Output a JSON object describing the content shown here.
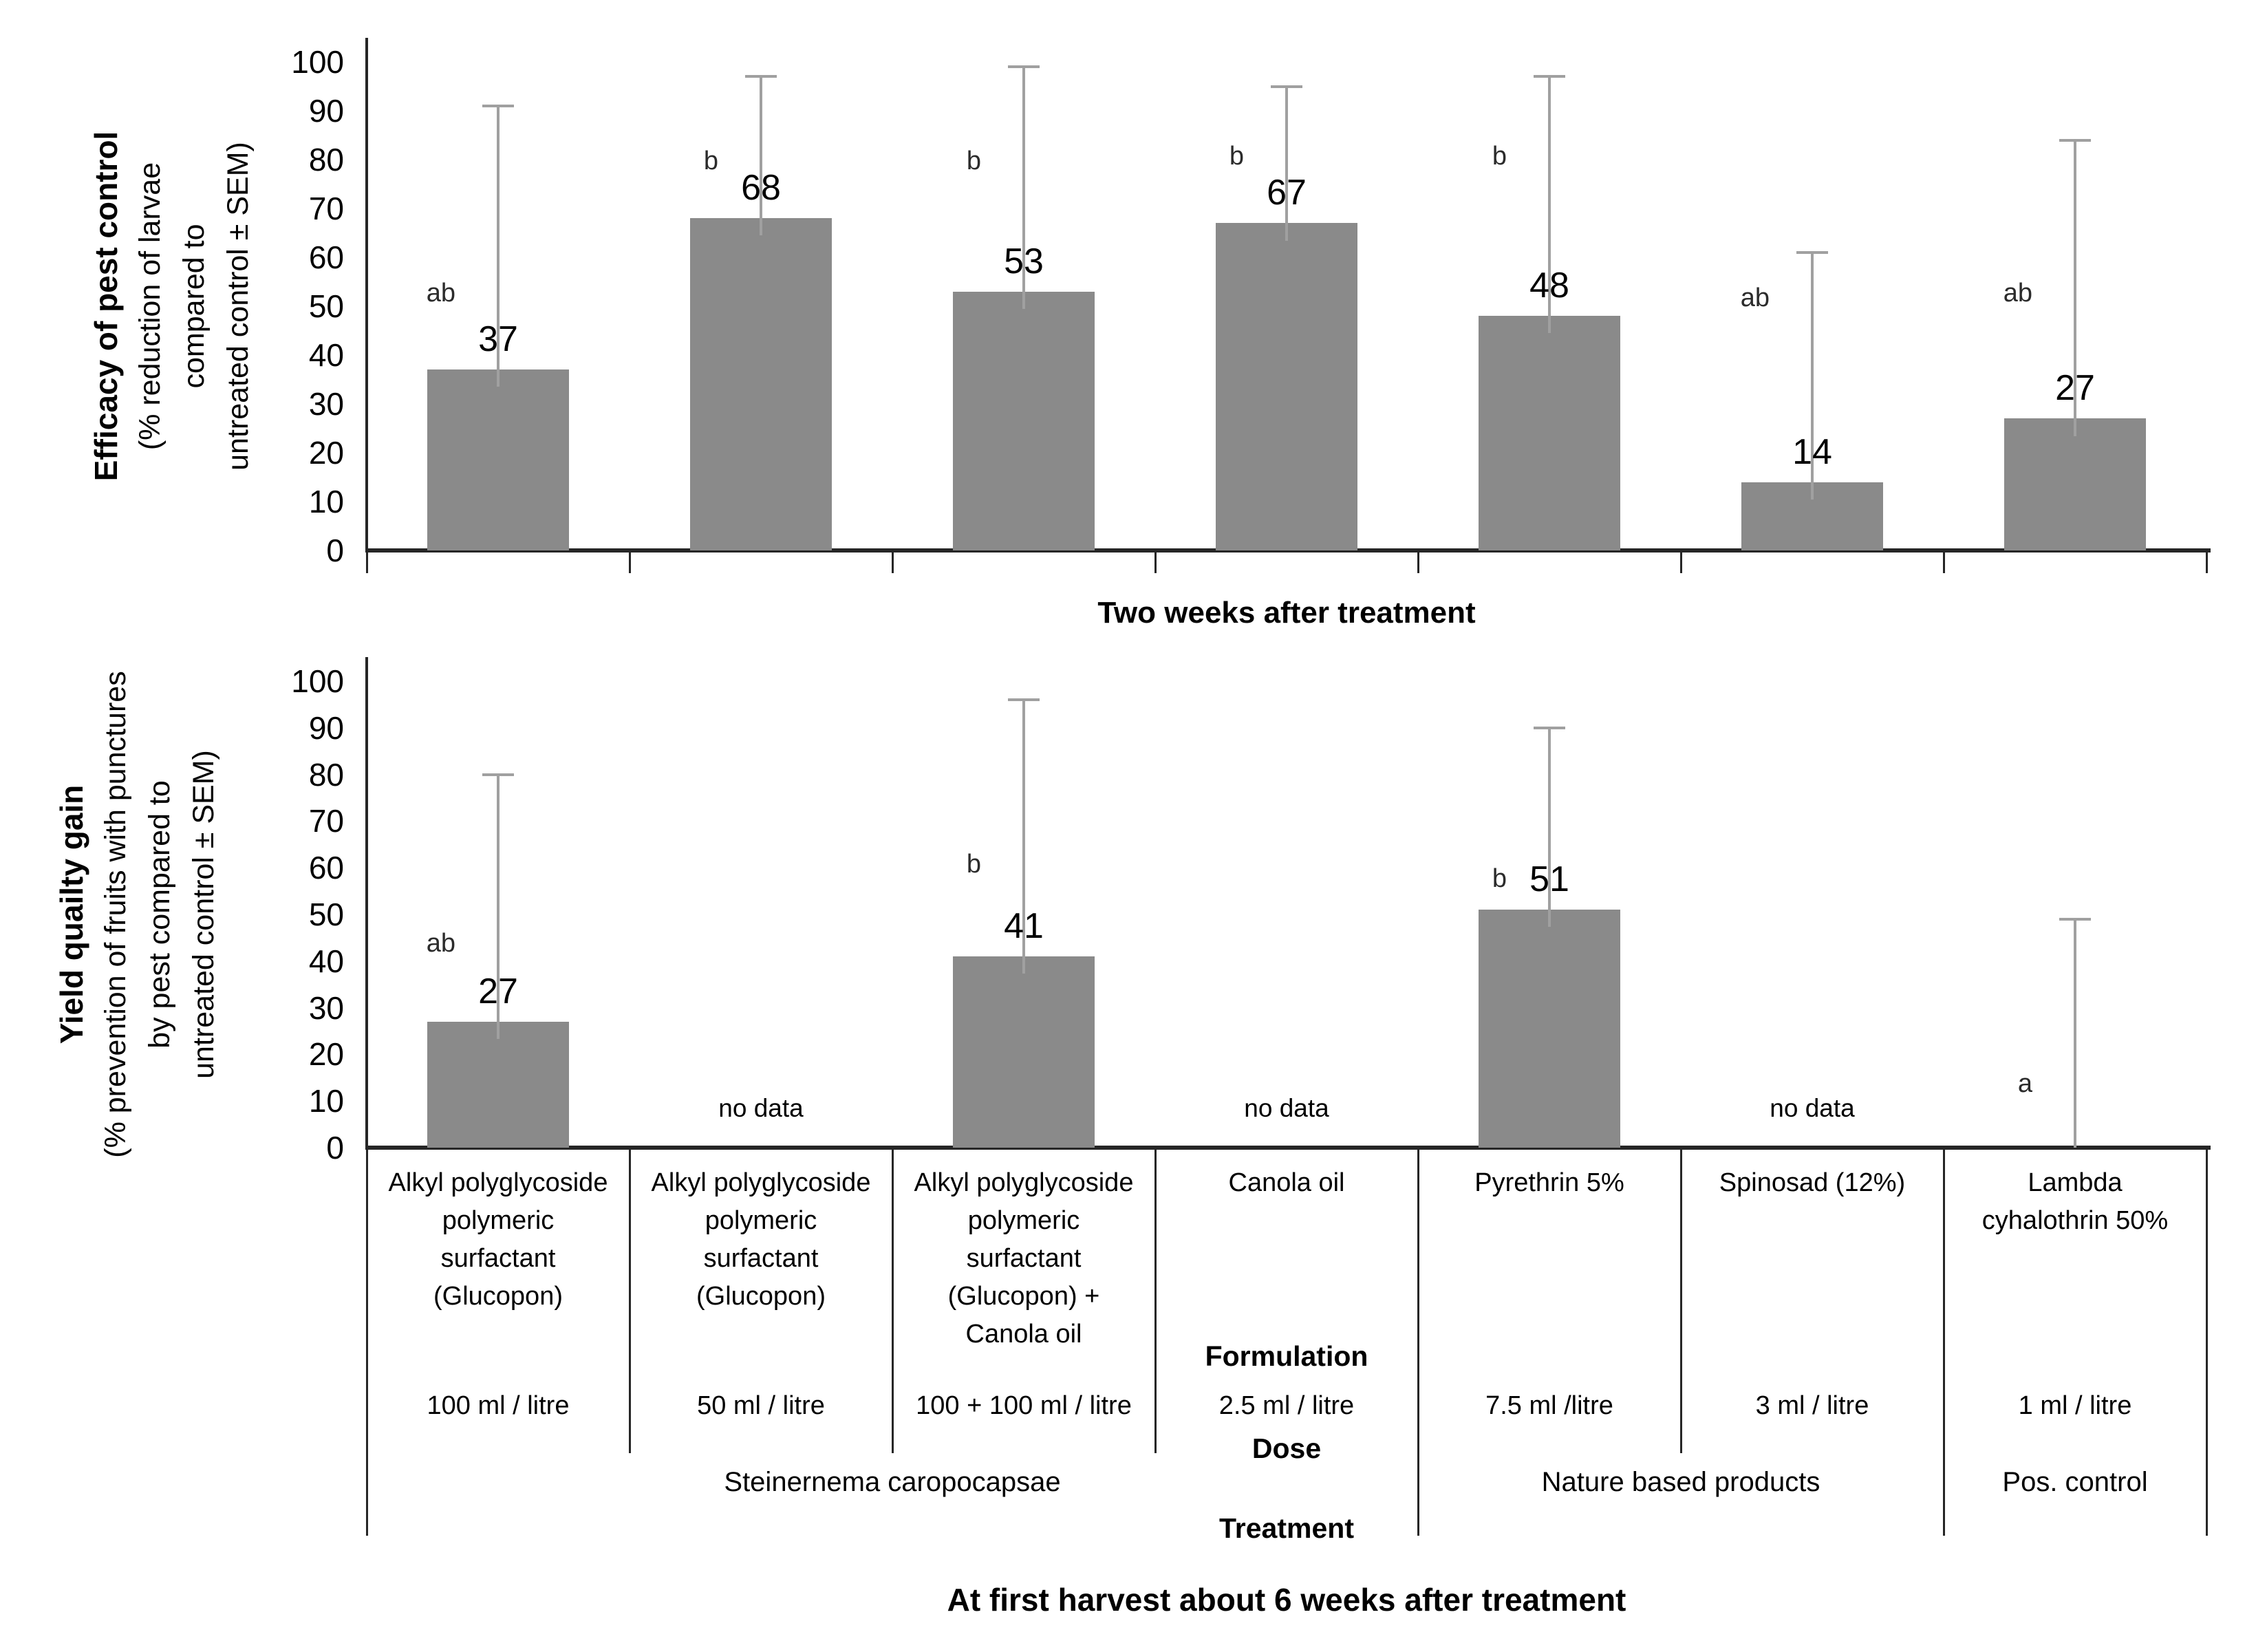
{
  "style": {
    "bar_color": "#8a8a8a",
    "error_bar_color": "#a0a0a0",
    "axis_color": "#262626",
    "text_color": "#000000"
  },
  "chart_data": [
    {
      "type": "bar",
      "title": "Efficacy of pest control",
      "ylabel_bold": "Efficacy of pest control",
      "ylabel_sub": "(% reduction of larvae\ncompared to\nuntreated control ± SEM)",
      "xlabel": "Two weeks after treatment",
      "ylim": [
        0,
        100
      ],
      "yticks": [
        0,
        10,
        20,
        30,
        40,
        50,
        60,
        70,
        80,
        90,
        100
      ],
      "grid": false,
      "legend": null,
      "categories": [
        "Alkyl polyglycoside polymeric surfactant (Glucopon)",
        "Alkyl polyglycoside polymeric surfactant (Glucopon)",
        "Alkyl polyglycoside polymeric surfactant (Glucopon) + Canola oil",
        "Canola oil",
        "Pyrethrin 5%",
        "Spinosad (12%)",
        "Lambda cyhalothrin 50%"
      ],
      "values": [
        37,
        68,
        53,
        67,
        48,
        14,
        27
      ],
      "error_top": [
        91,
        97,
        99,
        95,
        97,
        61,
        84
      ],
      "sig_letters": [
        "ab",
        "b",
        "b",
        "b",
        "b",
        "ab",
        "ab"
      ],
      "sig_letter_y": [
        52,
        79,
        79,
        80,
        80,
        51,
        52
      ]
    },
    {
      "type": "bar",
      "title": "Yield quailty gain",
      "ylabel_bold": "Yield quailty gain",
      "ylabel_sub": "(% prevention of fruits with punctures\nby pest compared to\nuntreated control ± SEM)",
      "xlabel": "At first harvest about 6 weeks after treatment",
      "ylim": [
        0,
        100
      ],
      "yticks": [
        0,
        10,
        20,
        30,
        40,
        50,
        60,
        70,
        80,
        90,
        100
      ],
      "grid": false,
      "legend": null,
      "no_data_label": "no data",
      "categories": [
        "Alkyl polyglycoside polymeric surfactant (Glucopon)",
        "Alkyl polyglycoside polymeric surfactant (Glucopon)",
        "Alkyl polyglycoside polymeric surfactant (Glucopon) + Canola oil",
        "Canola oil",
        "Pyrethrin 5%",
        "Spinosad (12%)",
        "Lambda cyhalothrin 50%"
      ],
      "values": [
        27,
        null,
        41,
        null,
        51,
        null,
        0
      ],
      "error_top": [
        80,
        null,
        96,
        null,
        90,
        null,
        49
      ],
      "sig_letters": [
        "ab",
        null,
        "b",
        null,
        "b",
        null,
        "a"
      ],
      "sig_letter_y": [
        43,
        null,
        60,
        null,
        57,
        null,
        13
      ]
    }
  ],
  "table": {
    "formulation_label": "Formulation",
    "dose_label": "Dose",
    "treatment_label": "Treatment",
    "formulations": [
      "Alkyl polyglycoside\npolymeric\nsurfactant\n(Glucopon)",
      "Alkyl polyglycoside\npolymeric\nsurfactant\n(Glucopon)",
      "Alkyl polyglycoside\npolymeric\nsurfactant\n(Glucopon) +\nCanola oil",
      "Canola oil",
      "Pyrethrin 5%",
      "Spinosad (12%)",
      "Lambda\ncyhalothrin 50%"
    ],
    "doses": [
      "100 ml / litre",
      "50 ml / litre",
      "100 + 100 ml / litre",
      "2.5 ml / litre",
      "7.5 ml /litre",
      "3 ml / litre",
      "1 ml / litre"
    ],
    "treatments": [
      {
        "label": "Steinernema caropocapsae",
        "span": 4
      },
      {
        "label": "Nature based products",
        "span": 2
      },
      {
        "label": "Pos. control",
        "span": 1
      }
    ]
  }
}
